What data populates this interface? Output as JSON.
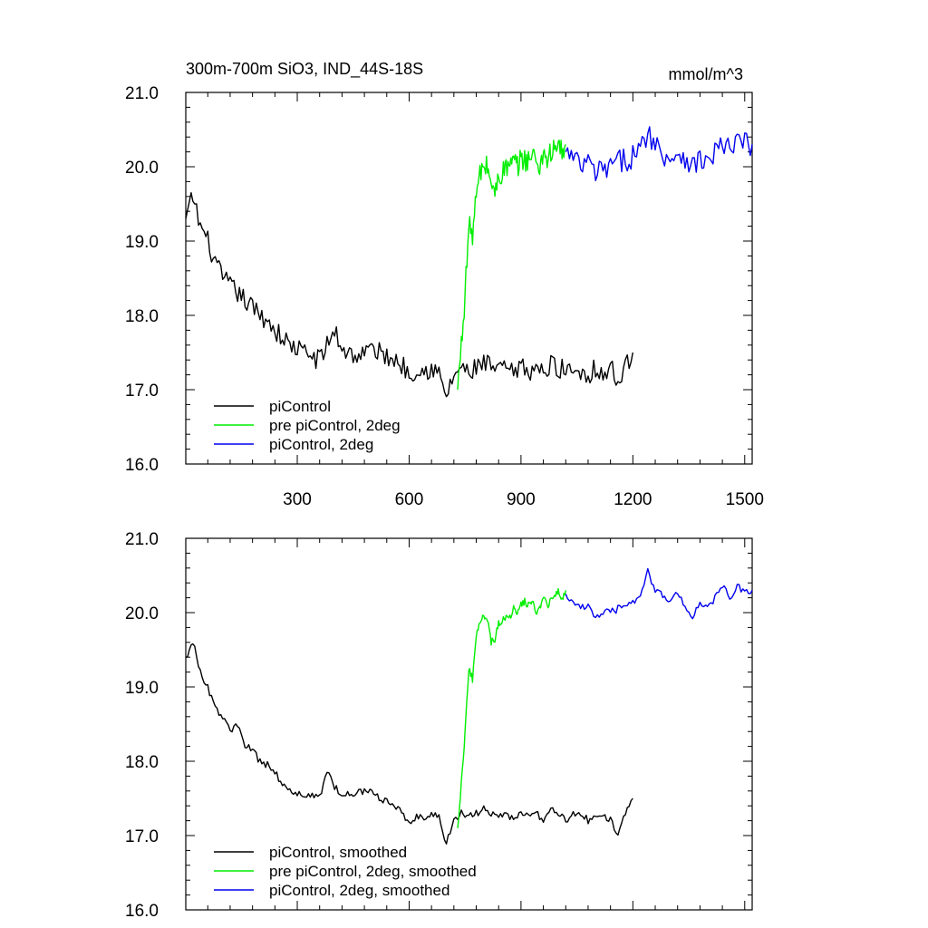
{
  "chart_data": [
    {
      "type": "line",
      "title": "300m-700m SiO3, IND_44S-18S",
      "units": "mmol/m^3",
      "xlim": [
        1,
        1520
      ],
      "ylim": [
        16.0,
        21.0
      ],
      "x_ticks": [
        300,
        600,
        900,
        1200,
        1500
      ],
      "x_tick_labels": [
        "300",
        "600",
        "900",
        "1200",
        "1500"
      ],
      "y_ticks": [
        16.0,
        17.0,
        18.0,
        19.0,
        20.0,
        21.0
      ],
      "y_tick_labels": [
        "16.0",
        "17.0",
        "18.0",
        "19.0",
        "20.0",
        "21.0"
      ],
      "legend_position": "bottom-left",
      "series": [
        {
          "name": "piControl",
          "color": "#000000",
          "x": [
            1,
            20,
            40,
            60,
            80,
            100,
            120,
            140,
            160,
            180,
            200,
            220,
            240,
            260,
            280,
            300,
            320,
            340,
            360,
            380,
            400,
            420,
            440,
            460,
            480,
            500,
            520,
            540,
            560,
            580,
            600,
            620,
            640,
            660,
            680,
            700,
            720,
            740,
            760,
            780,
            800,
            820,
            840,
            860,
            880,
            900,
            920,
            940,
            960,
            980,
            1000,
            1020,
            1040,
            1060,
            1080,
            1100,
            1120,
            1140,
            1160,
            1180,
            1200
          ],
          "values": [
            19.3,
            19.6,
            19.2,
            19.0,
            18.7,
            18.5,
            18.4,
            18.3,
            18.2,
            18.1,
            18.0,
            17.95,
            17.8,
            17.7,
            17.6,
            17.55,
            17.5,
            17.45,
            17.4,
            17.6,
            17.8,
            17.55,
            17.5,
            17.45,
            17.5,
            17.55,
            17.5,
            17.45,
            17.4,
            17.35,
            17.2,
            17.3,
            17.25,
            17.3,
            17.2,
            16.9,
            17.2,
            17.3,
            17.2,
            17.3,
            17.35,
            17.3,
            17.25,
            17.3,
            17.2,
            17.3,
            17.25,
            17.3,
            17.2,
            17.35,
            17.3,
            17.25,
            17.3,
            17.25,
            17.2,
            17.3,
            17.2,
            17.3,
            17.1,
            17.3,
            17.5
          ],
          "noise": 0.14
        },
        {
          "name": "pre piControl, 2deg",
          "color": "#00ee00",
          "x": [
            730,
            740,
            750,
            760,
            770,
            780,
            790,
            800,
            810,
            820,
            830,
            840,
            850,
            860,
            870,
            880,
            890,
            900,
            910,
            920,
            930,
            940,
            950,
            960,
            970,
            980,
            990,
            1000,
            1010,
            1020
          ],
          "values": [
            17.0,
            17.6,
            18.3,
            19.2,
            19.1,
            19.6,
            19.9,
            20.0,
            20.0,
            19.8,
            19.6,
            19.9,
            19.9,
            20.0,
            20.0,
            20.05,
            20.0,
            20.1,
            20.1,
            20.1,
            20.15,
            20.1,
            20.0,
            20.2,
            20.1,
            20.2,
            20.2,
            20.3,
            20.2,
            20.3
          ],
          "noise": 0.16
        },
        {
          "name": "piControl, 2deg",
          "color": "#0000ee",
          "x": [
            1020,
            1040,
            1060,
            1080,
            1100,
            1120,
            1140,
            1160,
            1180,
            1200,
            1220,
            1240,
            1260,
            1280,
            1300,
            1320,
            1340,
            1360,
            1380,
            1400,
            1420,
            1440,
            1460,
            1480,
            1500,
            1520
          ],
          "values": [
            20.2,
            20.1,
            20.0,
            20.05,
            19.9,
            19.95,
            20.0,
            20.05,
            20.1,
            20.15,
            20.2,
            20.5,
            20.3,
            20.2,
            20.1,
            20.2,
            20.15,
            20.0,
            20.1,
            20.05,
            20.2,
            20.3,
            20.2,
            20.35,
            20.3,
            20.3
          ],
          "noise": 0.17
        }
      ]
    },
    {
      "type": "line",
      "title": "",
      "xlim": [
        1,
        1520
      ],
      "ylim": [
        16.0,
        21.0
      ],
      "x_ticks": [
        300,
        600,
        900,
        1200,
        1500
      ],
      "y_ticks": [
        16.0,
        17.0,
        18.0,
        19.0,
        20.0,
        21.0
      ],
      "y_tick_labels": [
        "16.0",
        "17.0",
        "18.0",
        "19.0",
        "20.0",
        "21.0"
      ],
      "legend_position": "bottom-left",
      "series": [
        {
          "name": "piControl, smoothed",
          "color": "#000000",
          "x": [
            1,
            20,
            40,
            60,
            80,
            100,
            120,
            140,
            160,
            180,
            200,
            220,
            240,
            260,
            280,
            300,
            320,
            340,
            360,
            380,
            400,
            420,
            440,
            460,
            480,
            500,
            520,
            540,
            560,
            580,
            600,
            620,
            640,
            660,
            680,
            700,
            720,
            740,
            760,
            780,
            800,
            820,
            840,
            860,
            880,
            900,
            920,
            940,
            960,
            980,
            1000,
            1020,
            1040,
            1060,
            1080,
            1100,
            1120,
            1140,
            1160,
            1180,
            1200
          ],
          "values": [
            19.4,
            19.6,
            19.2,
            19.0,
            18.7,
            18.6,
            18.4,
            18.5,
            18.2,
            18.15,
            18.0,
            17.95,
            17.85,
            17.7,
            17.6,
            17.55,
            17.55,
            17.55,
            17.5,
            17.9,
            17.65,
            17.55,
            17.55,
            17.6,
            17.6,
            17.6,
            17.5,
            17.45,
            17.4,
            17.3,
            17.2,
            17.25,
            17.25,
            17.3,
            17.25,
            16.9,
            17.2,
            17.3,
            17.25,
            17.3,
            17.35,
            17.3,
            17.25,
            17.3,
            17.2,
            17.3,
            17.3,
            17.3,
            17.2,
            17.35,
            17.3,
            17.2,
            17.3,
            17.3,
            17.2,
            17.3,
            17.25,
            17.2,
            17.0,
            17.3,
            17.5
          ],
          "noise": 0.05
        },
        {
          "name": "pre piControl, 2deg, smoothed",
          "color": "#00ee00",
          "x": [
            730,
            740,
            750,
            760,
            770,
            780,
            790,
            800,
            810,
            820,
            830,
            840,
            850,
            860,
            870,
            880,
            890,
            900,
            910,
            920,
            930,
            940,
            950,
            960,
            970,
            980,
            990,
            1000,
            1010,
            1020
          ],
          "values": [
            17.1,
            17.7,
            18.4,
            19.25,
            19.1,
            19.7,
            19.85,
            19.95,
            19.9,
            19.6,
            19.65,
            19.85,
            19.9,
            19.95,
            19.95,
            20.05,
            20.0,
            20.1,
            20.15,
            20.1,
            20.15,
            20.0,
            20.05,
            20.2,
            20.1,
            20.15,
            20.2,
            20.3,
            20.2,
            20.3
          ],
          "noise": 0.05
        },
        {
          "name": "piControl, 2deg, smoothed",
          "color": "#0000ee",
          "x": [
            1020,
            1040,
            1060,
            1080,
            1100,
            1120,
            1140,
            1160,
            1180,
            1200,
            1220,
            1240,
            1260,
            1280,
            1300,
            1320,
            1340,
            1360,
            1380,
            1400,
            1420,
            1440,
            1460,
            1480,
            1500,
            1520
          ],
          "values": [
            20.25,
            20.15,
            20.05,
            20.1,
            19.95,
            20.0,
            20.0,
            20.05,
            20.1,
            20.15,
            20.25,
            20.55,
            20.3,
            20.25,
            20.15,
            20.25,
            20.1,
            19.95,
            20.1,
            20.05,
            20.2,
            20.35,
            20.2,
            20.35,
            20.3,
            20.3
          ],
          "noise": 0.05
        }
      ]
    }
  ]
}
